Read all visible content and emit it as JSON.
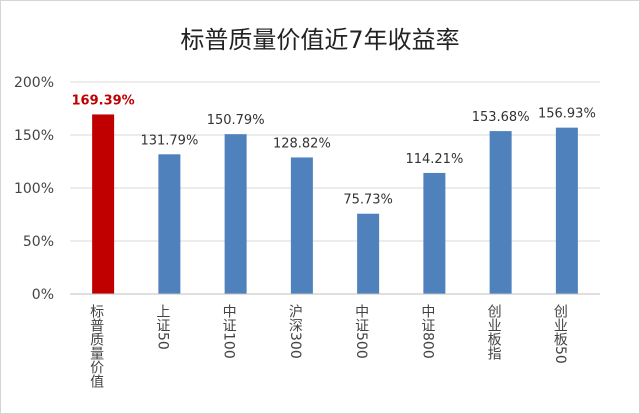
{
  "chart_data": {
    "type": "bar",
    "title": "标普质量价值近7年收益率",
    "categories": [
      "标普质量价值",
      "上证50",
      "中证100",
      "沪深300",
      "中证500",
      "中证800",
      "创业板指",
      "创业板50"
    ],
    "values": [
      169.39,
      131.79,
      150.79,
      128.82,
      75.73,
      114.21,
      153.68,
      156.93
    ],
    "data_labels": [
      "169.39%",
      "131.79%",
      "150.79%",
      "128.82%",
      "75.73%",
      "114.21%",
      "153.68%",
      "156.93%"
    ],
    "y_ticks": [
      "0%",
      "50%",
      "100%",
      "150%",
      "200%"
    ],
    "y_tick_values": [
      0,
      50,
      100,
      150,
      200
    ],
    "ylim": [
      0,
      200
    ],
    "xlabel": "",
    "ylabel": "",
    "grid": true,
    "colors": {
      "highlight_bar": "#C00000",
      "bar": "#4F81BD",
      "highlight_label": "#C00000",
      "label": "#333333",
      "grid": "#D9D9D9",
      "axis_text": "#444444"
    },
    "highlight_index": 0
  }
}
